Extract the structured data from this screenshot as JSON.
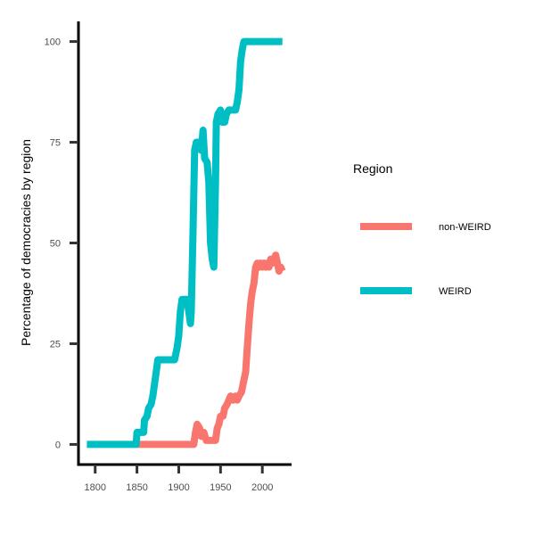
{
  "chart_data": {
    "type": "line",
    "title": "",
    "xlabel": "",
    "ylabel": "Percentage of democracies by region",
    "xlim": [
      1780,
      2035
    ],
    "ylim": [
      -5,
      105
    ],
    "x_ticks": [
      1800,
      1850,
      1900,
      1950,
      2000
    ],
    "y_ticks": [
      0,
      25,
      50,
      75,
      100
    ],
    "grid": false,
    "legend": {
      "title": "Region",
      "placement": "right"
    },
    "series": [
      {
        "name": "non-WEIRD",
        "color": "#F8766D",
        "points": [
          [
            1850,
            0
          ],
          [
            1918,
            0
          ],
          [
            1920,
            3
          ],
          [
            1922,
            5
          ],
          [
            1925,
            4
          ],
          [
            1927,
            2
          ],
          [
            1930,
            3
          ],
          [
            1933,
            1
          ],
          [
            1935,
            1
          ],
          [
            1938,
            1
          ],
          [
            1942,
            1
          ],
          [
            1944,
            1
          ],
          [
            1946,
            4
          ],
          [
            1948,
            5
          ],
          [
            1950,
            7
          ],
          [
            1953,
            7
          ],
          [
            1955,
            9
          ],
          [
            1958,
            10
          ],
          [
            1960,
            11
          ],
          [
            1962,
            12
          ],
          [
            1965,
            11
          ],
          [
            1968,
            12
          ],
          [
            1970,
            11
          ],
          [
            1972,
            12
          ],
          [
            1975,
            13
          ],
          [
            1978,
            16
          ],
          [
            1980,
            18
          ],
          [
            1982,
            24
          ],
          [
            1984,
            30
          ],
          [
            1986,
            35
          ],
          [
            1988,
            38
          ],
          [
            1990,
            40
          ],
          [
            1992,
            44
          ],
          [
            1994,
            45
          ],
          [
            1996,
            44
          ],
          [
            1998,
            45
          ],
          [
            2000,
            44
          ],
          [
            2002,
            45
          ],
          [
            2004,
            44
          ],
          [
            2006,
            45
          ],
          [
            2008,
            44
          ],
          [
            2010,
            46
          ],
          [
            2012,
            45
          ],
          [
            2014,
            46
          ],
          [
            2016,
            47
          ],
          [
            2018,
            45
          ],
          [
            2020,
            43
          ],
          [
            2022,
            44
          ],
          [
            2024,
            43
          ]
        ]
      },
      {
        "name": "WEIRD",
        "color": "#00BFC4",
        "points": [
          [
            1790,
            0
          ],
          [
            1849,
            0
          ],
          [
            1850,
            3
          ],
          [
            1858,
            3
          ],
          [
            1859,
            6
          ],
          [
            1862,
            7
          ],
          [
            1864,
            9
          ],
          [
            1867,
            10
          ],
          [
            1869,
            12
          ],
          [
            1871,
            15
          ],
          [
            1873,
            18
          ],
          [
            1875,
            21
          ],
          [
            1878,
            21
          ],
          [
            1895,
            21
          ],
          [
            1898,
            24
          ],
          [
            1900,
            27
          ],
          [
            1902,
            33
          ],
          [
            1904,
            36
          ],
          [
            1910,
            36
          ],
          [
            1912,
            33
          ],
          [
            1914,
            30
          ],
          [
            1915,
            33
          ],
          [
            1917,
            52
          ],
          [
            1919,
            73
          ],
          [
            1921,
            75
          ],
          [
            1925,
            75
          ],
          [
            1927,
            73
          ],
          [
            1929,
            78
          ],
          [
            1931,
            71
          ],
          [
            1934,
            70
          ],
          [
            1936,
            65
          ],
          [
            1938,
            50
          ],
          [
            1940,
            46
          ],
          [
            1942,
            44
          ],
          [
            1944,
            65
          ],
          [
            1945,
            80
          ],
          [
            1947,
            82
          ],
          [
            1950,
            83
          ],
          [
            1952,
            80
          ],
          [
            1955,
            80
          ],
          [
            1957,
            82
          ],
          [
            1960,
            83
          ],
          [
            1965,
            83
          ],
          [
            1968,
            83
          ],
          [
            1970,
            85
          ],
          [
            1972,
            88
          ],
          [
            1974,
            95
          ],
          [
            1976,
            98
          ],
          [
            1978,
            100
          ],
          [
            2024,
            100
          ]
        ]
      }
    ]
  }
}
